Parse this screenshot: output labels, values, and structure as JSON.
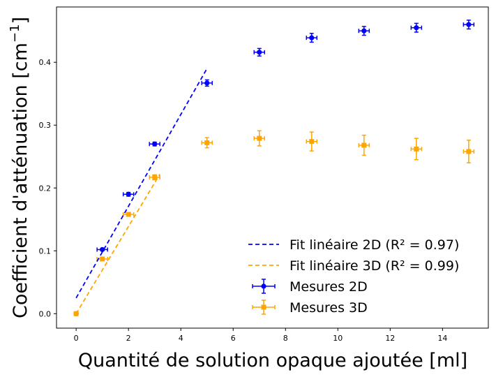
{
  "chart_data": {
    "type": "scatter",
    "xlabel": "Quantité de solution opaque ajoutée [ml]",
    "ylabel": "Coefficient d'atténuation [cm",
    "ylabel_sup": "−1",
    "ylabel_close": "]",
    "xlim": [
      -0.75,
      15.75
    ],
    "ylim": [
      -0.023,
      0.488
    ],
    "xticks": [
      0,
      2,
      4,
      6,
      8,
      10,
      12,
      14
    ],
    "xtick_labels": [
      "0",
      "2",
      "4",
      "6",
      "8",
      "10",
      "12",
      "14"
    ],
    "yticks": [
      0.0,
      0.1,
      0.2,
      0.3,
      0.4
    ],
    "ytick_labels": [
      "0.0",
      "0.1",
      "0.2",
      "0.3",
      "0.4"
    ],
    "grid": false,
    "legend_position": "lower-right",
    "series": [
      {
        "name": "Mesures 2D",
        "kind": "errorbar",
        "color": "#0000ff",
        "marker": "circle",
        "x": [
          0,
          1,
          2,
          3,
          5,
          7,
          9,
          11,
          13,
          15
        ],
        "y": [
          0.0,
          0.102,
          0.19,
          0.27,
          0.367,
          0.416,
          0.439,
          0.45,
          0.455,
          0.46
        ],
        "xerr": [
          0.0,
          0.2,
          0.2,
          0.2,
          0.2,
          0.2,
          0.2,
          0.2,
          0.2,
          0.2
        ],
        "yerr": [
          0.0,
          0.002,
          0.003,
          0.003,
          0.005,
          0.006,
          0.007,
          0.007,
          0.007,
          0.007
        ]
      },
      {
        "name": "Mesures 3D",
        "kind": "errorbar",
        "color": "#ffa500",
        "marker": "square",
        "x": [
          0,
          1,
          2,
          3,
          5,
          7,
          9,
          11,
          13,
          15
        ],
        "y": [
          0.0,
          0.087,
          0.158,
          0.217,
          0.272,
          0.279,
          0.274,
          0.268,
          0.262,
          0.258
        ],
        "xerr": [
          0.0,
          0.2,
          0.2,
          0.2,
          0.2,
          0.2,
          0.2,
          0.2,
          0.2,
          0.2
        ],
        "yerr": [
          0.0,
          0.002,
          0.003,
          0.004,
          0.008,
          0.012,
          0.015,
          0.016,
          0.017,
          0.018
        ]
      },
      {
        "name": "Fit linéaire 2D (R² = 0.97)",
        "kind": "line",
        "style": "dashed",
        "color": "#0000ff",
        "x": [
          0,
          5
        ],
        "y": [
          0.025,
          0.39
        ]
      },
      {
        "name": "Fit linéaire 3D (R² = 0.99)",
        "kind": "line",
        "style": "dashed",
        "color": "#ffa500",
        "x": [
          0,
          3.2
        ],
        "y": [
          0.0,
          0.222
        ]
      }
    ],
    "legend_order": [
      2,
      3,
      0,
      1
    ]
  }
}
